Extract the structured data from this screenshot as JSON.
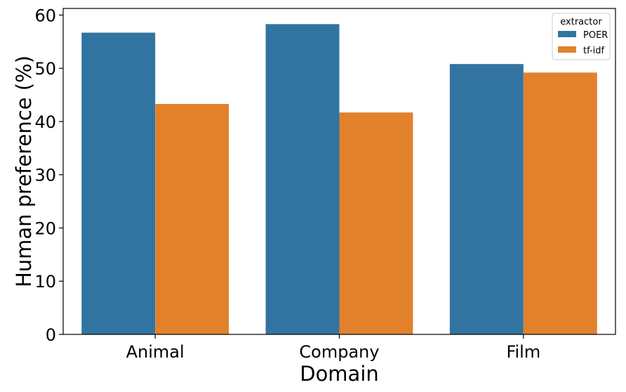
{
  "chart_data": {
    "type": "bar",
    "categories": [
      "Animal",
      "Company",
      "Film"
    ],
    "series": [
      {
        "name": "POER",
        "values": [
          56.7,
          58.3,
          50.8
        ],
        "color": "#3274a1"
      },
      {
        "name": "tf-idf",
        "values": [
          43.3,
          41.7,
          49.2
        ],
        "color": "#e1812c"
      }
    ],
    "xlabel": "Domain",
    "ylabel": "Human preference (%)",
    "ylim": [
      0,
      61.25
    ],
    "yticks": [
      0,
      10,
      20,
      30,
      40,
      50,
      60
    ],
    "legend": {
      "title": "extractor",
      "placement": "top-right"
    },
    "grid": false
  }
}
